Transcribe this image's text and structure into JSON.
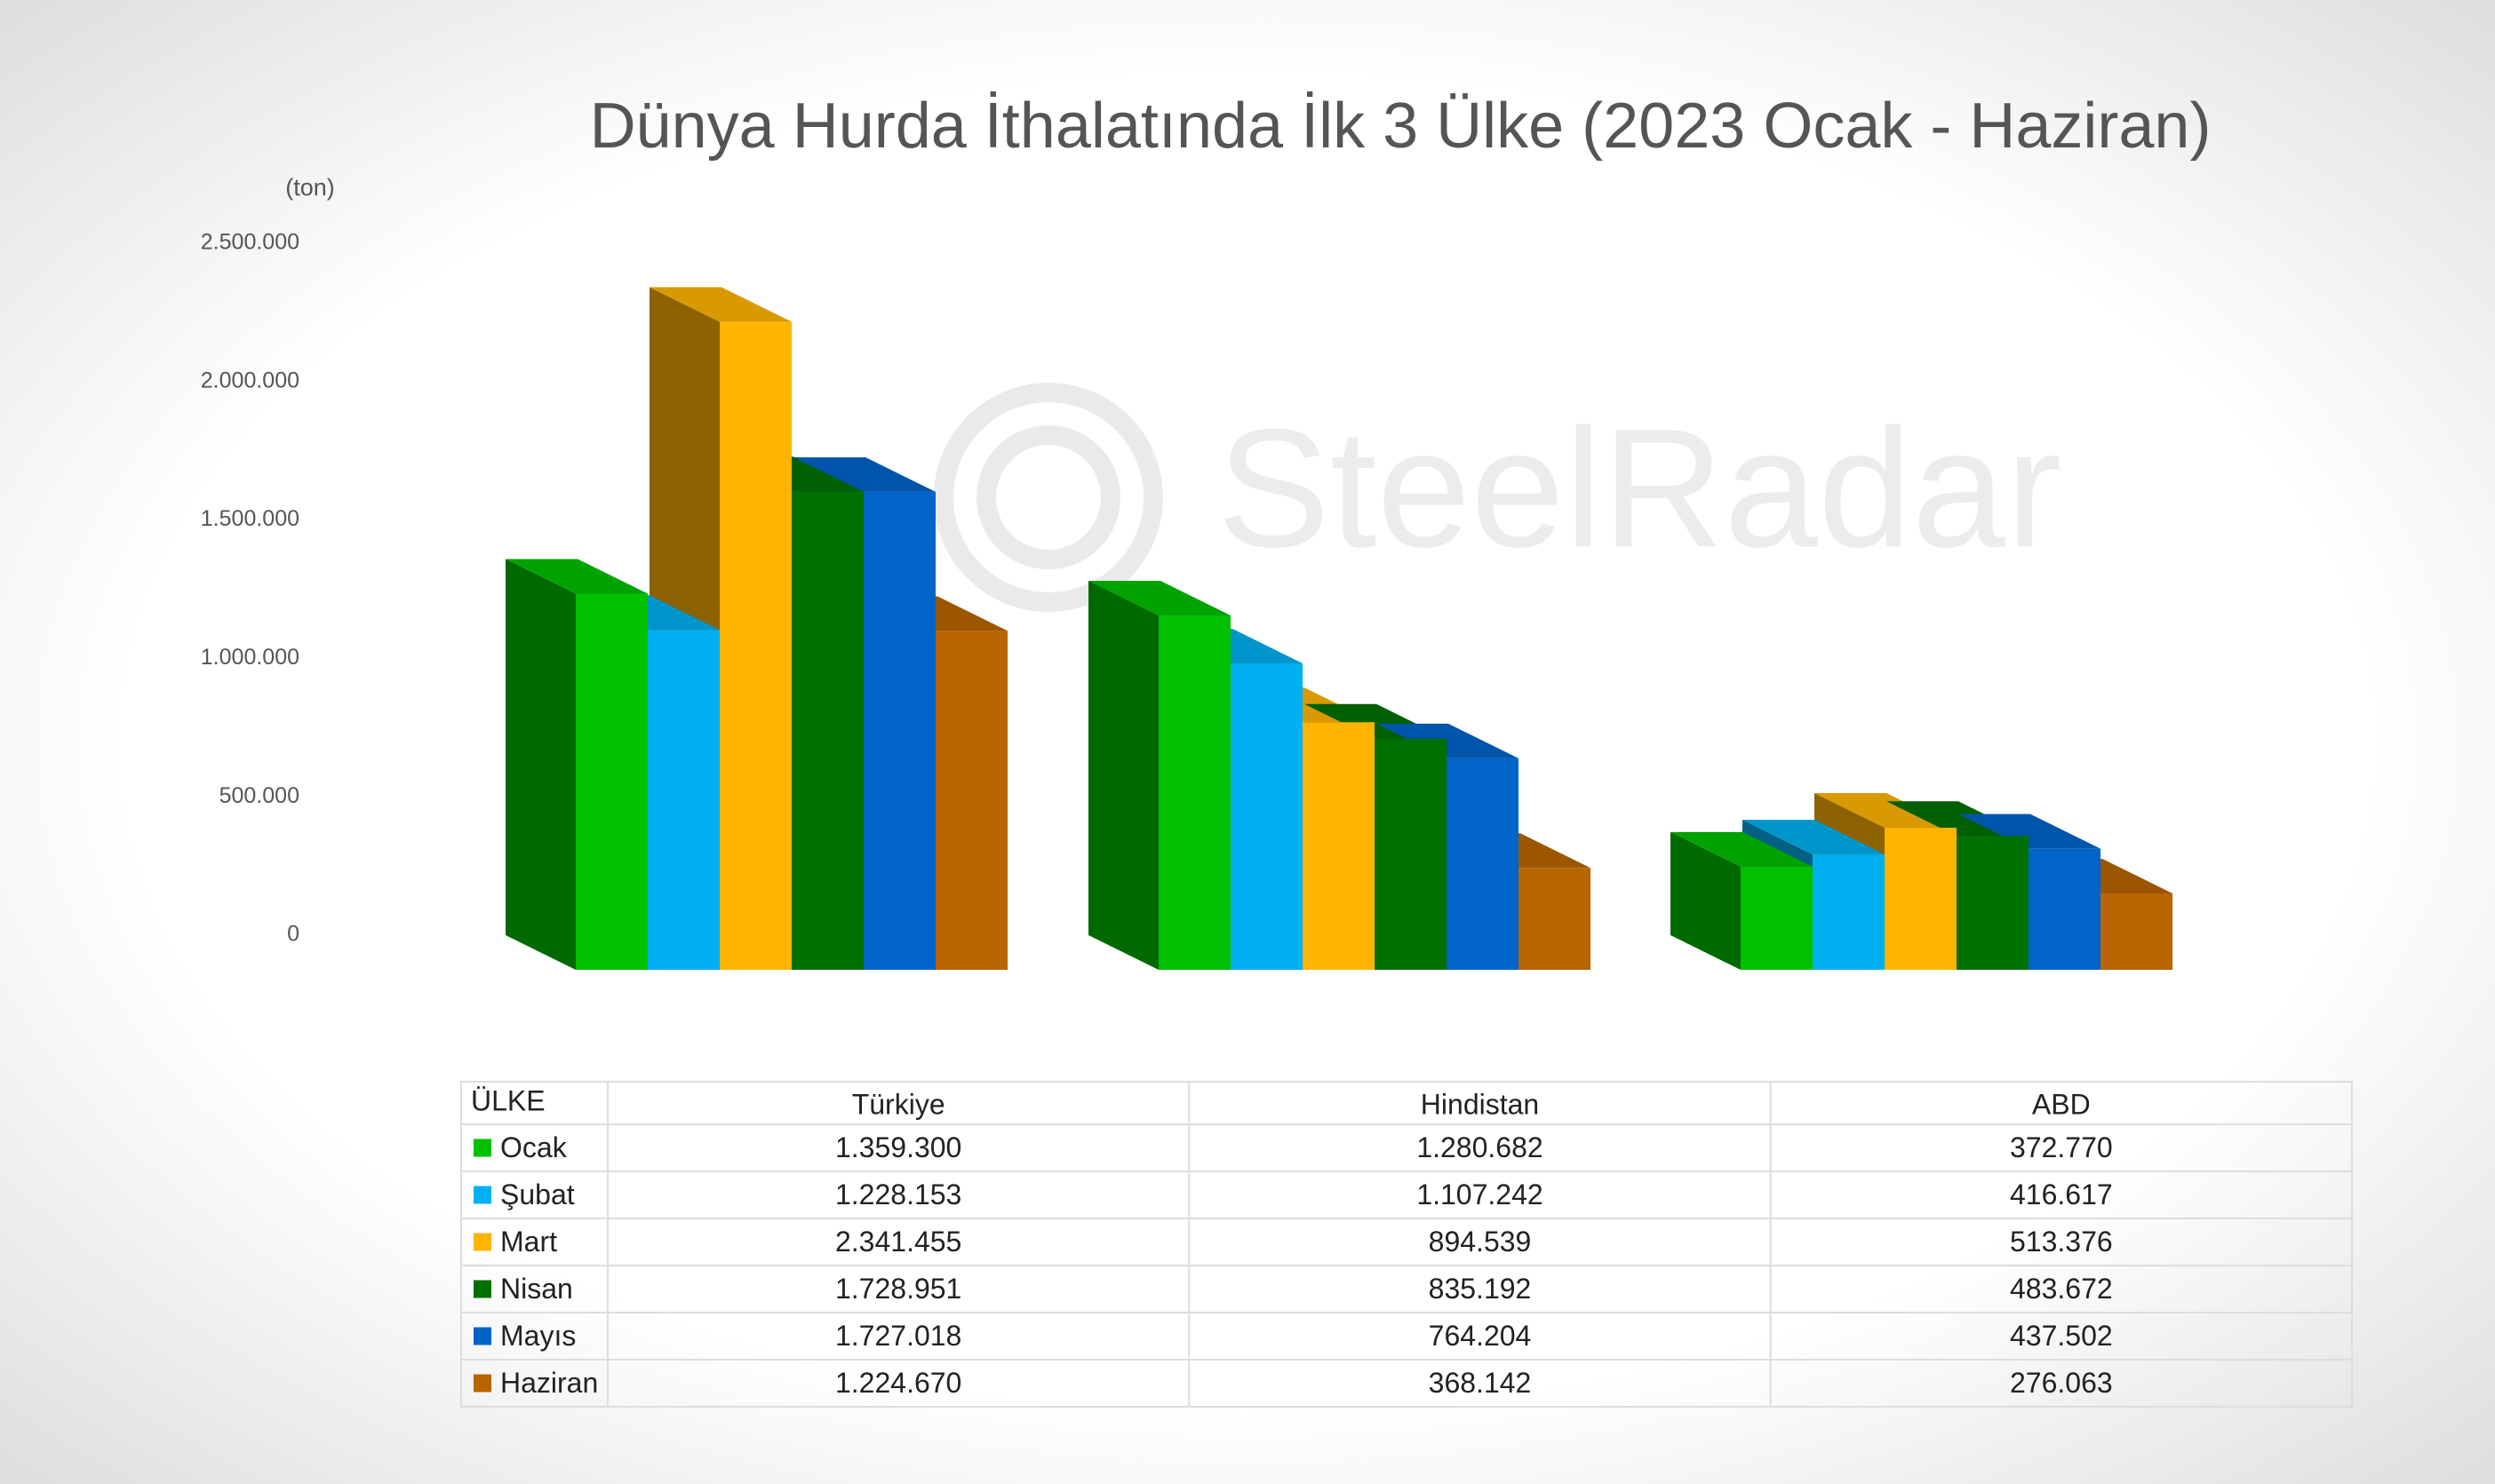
{
  "chart_data": {
    "type": "bar3d",
    "title": "Dünya Hurda İthalatında İlk 3 Ülke (2023 Ocak - Haziran)",
    "y_label": "(ton)",
    "watermark": "SteelRadar",
    "table_header": "ÜLKE",
    "categories": [
      "Türkiye",
      "Hindistan",
      "ABD"
    ],
    "ylim": [
      0,
      2500000
    ],
    "yticks": [
      0,
      {
        "value": 500000,
        "label": "500.000"
      },
      {
        "value": 1000000,
        "label": "1.000.000"
      },
      {
        "value": 1500000,
        "label": "1.500.000"
      },
      {
        "value": 2000000,
        "label": "2.000.000"
      },
      {
        "value": 2500000,
        "label": "2.500.000"
      }
    ],
    "series": [
      {
        "name": "Ocak",
        "color": "#00c000",
        "values": [
          1359300,
          1280682,
          372770
        ],
        "value_labels": [
          "1.359.300",
          "1.280.682",
          "372.770"
        ]
      },
      {
        "name": "Şubat",
        "color": "#00b0f0",
        "values": [
          1228153,
          1107242,
          416617
        ],
        "value_labels": [
          "1.228.153",
          "1.107.242",
          "416.617"
        ]
      },
      {
        "name": "Mart",
        "color": "#ffb400",
        "values": [
          2341455,
          894539,
          513376
        ],
        "value_labels": [
          "2.341.455",
          "894.539",
          "513.376"
        ]
      },
      {
        "name": "Nisan",
        "color": "#007000",
        "values": [
          1728951,
          835192,
          483672
        ],
        "value_labels": [
          "1.728.951",
          "835.192",
          "483.672"
        ]
      },
      {
        "name": "Mayıs",
        "color": "#0064c8",
        "values": [
          1727018,
          764204,
          437502
        ],
        "value_labels": [
          "1.727.018",
          "764.204",
          "437.502"
        ]
      },
      {
        "name": "Haziran",
        "color": "#b86400",
        "values": [
          1224670,
          368142,
          276063
        ],
        "value_labels": [
          "1.224.670",
          "368.142",
          "276.063"
        ]
      }
    ]
  }
}
